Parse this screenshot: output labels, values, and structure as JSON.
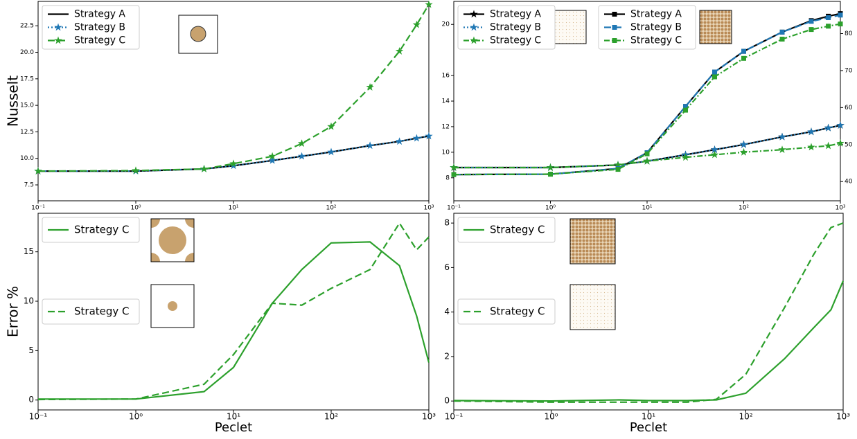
{
  "chart_data": [
    {
      "type": "line",
      "xscale": "log",
      "ylabel": "Nusselt",
      "x": [
        0.1,
        1,
        5,
        10,
        25,
        50,
        100,
        250,
        500,
        750,
        1000
      ],
      "xlim": [
        0.1,
        1000
      ],
      "xticks": [
        {
          "value": 0.1,
          "label": "10⁻¹"
        },
        {
          "value": 1,
          "label": "10⁰"
        },
        {
          "value": 10,
          "label": "10¹"
        },
        {
          "value": 100,
          "label": "10²"
        },
        {
          "value": 1000,
          "label": "10³"
        }
      ],
      "ylim": [
        6.0,
        24.8
      ],
      "yticks": [
        7.5,
        {
          "value": 10,
          "label": "10.0"
        },
        12.5,
        {
          "value": 15,
          "label": "15.0"
        },
        17.5,
        {
          "value": 20,
          "label": "20.0"
        },
        22.5
      ],
      "series": [
        {
          "name": "Strategy A",
          "color": "#000000",
          "style": "solid",
          "marker": null,
          "legend": "upper left",
          "values": [
            8.8,
            8.8,
            9.0,
            9.3,
            9.8,
            10.2,
            10.6,
            11.2,
            11.6,
            11.9,
            12.1
          ]
        },
        {
          "name": "Strategy B",
          "color": "#1f77b4",
          "style": "dotted",
          "marker": "star",
          "legend": "upper left",
          "values": [
            8.8,
            8.8,
            9.0,
            9.3,
            9.8,
            10.2,
            10.6,
            11.2,
            11.6,
            11.9,
            12.1
          ]
        },
        {
          "name": "Strategy C",
          "color": "#2ca02c",
          "style": "dashed",
          "marker": "star",
          "legend": "upper left",
          "values": [
            8.8,
            8.85,
            9.0,
            9.5,
            10.2,
            11.4,
            13.0,
            16.7,
            20.1,
            22.6,
            24.5
          ]
        }
      ]
    },
    {
      "type": "line",
      "xscale": "log",
      "x": [
        0.1,
        1,
        5,
        10,
        25,
        50,
        100,
        250,
        500,
        750,
        1000
      ],
      "xlim": [
        0.1,
        1000
      ],
      "xticks": [
        {
          "value": 0.1,
          "label": "10⁻¹"
        },
        {
          "value": 1,
          "label": "10⁰"
        },
        {
          "value": 10,
          "label": "10¹"
        },
        {
          "value": 100,
          "label": "10²"
        },
        {
          "value": 1000,
          "label": "10³"
        }
      ],
      "ylim": [
        6.2,
        21.8
      ],
      "yticks": [
        8,
        10,
        12,
        14,
        16,
        20
      ],
      "y2lim": [
        34.8,
        88.7
      ],
      "y2ticks": [
        40,
        50,
        60,
        70,
        80
      ],
      "series": [
        {
          "name": "Strategy A",
          "color": "#000000",
          "style": "solid",
          "marker": "star",
          "legend": "upper left",
          "values": [
            8.8,
            8.8,
            9.0,
            9.3,
            9.8,
            10.2,
            10.6,
            11.2,
            11.6,
            11.9,
            12.1
          ]
        },
        {
          "name": "Strategy B",
          "color": "#1f77b4",
          "style": "dotted",
          "marker": "star",
          "legend": "upper left",
          "values": [
            8.8,
            8.8,
            9.0,
            9.3,
            9.8,
            10.2,
            10.6,
            11.2,
            11.6,
            11.9,
            12.1
          ]
        },
        {
          "name": "Strategy C",
          "color": "#2ca02c",
          "style": "dashdot",
          "marker": "star",
          "legend": "upper left",
          "values": [
            8.8,
            8.8,
            9.0,
            9.3,
            9.6,
            9.8,
            10.0,
            10.2,
            10.4,
            10.5,
            10.7
          ]
        },
        {
          "name": "Strategy A",
          "color": "#000000",
          "style": "solid",
          "marker": "square",
          "legend": "upper center",
          "axis": "y2",
          "values": [
            41.9,
            42.0,
            43.5,
            47.8,
            60.3,
            69.6,
            75.2,
            80.4,
            83.5,
            84.7,
            85.4
          ]
        },
        {
          "name": "Strategy B",
          "color": "#1f77b4",
          "style": "dashed",
          "marker": "square",
          "legend": "upper center",
          "axis": "y2",
          "values": [
            41.9,
            42.0,
            43.5,
            47.8,
            60.3,
            69.6,
            75.2,
            80.4,
            83.3,
            84.3,
            85.0
          ]
        },
        {
          "name": "Strategy C",
          "color": "#2ca02c",
          "style": "dashdot",
          "marker": "square",
          "legend": "upper center",
          "axis": "y2",
          "values": [
            41.9,
            42.0,
            43.3,
            47.5,
            59.3,
            68.3,
            73.3,
            78.5,
            81.1,
            82.0,
            82.6
          ]
        }
      ]
    },
    {
      "type": "line",
      "xscale": "log",
      "ylabel": "Error %",
      "xlabel": "Peclet",
      "x": [
        0.1,
        1,
        5,
        10,
        25,
        50,
        100,
        250,
        500,
        750,
        1000
      ],
      "xlim": [
        0.1,
        1000
      ],
      "xticks": [
        {
          "value": 0.1,
          "label": "10⁻¹"
        },
        {
          "value": 1,
          "label": "10⁰"
        },
        {
          "value": 10,
          "label": "10¹"
        },
        {
          "value": 100,
          "label": "10²"
        },
        {
          "value": 1000,
          "label": "10³"
        }
      ],
      "ylim": [
        -1.0,
        18.9
      ],
      "yticks": [
        0,
        5,
        10,
        15
      ],
      "series": [
        {
          "name": "Strategy C",
          "color": "#2ca02c",
          "style": "solid",
          "marker": null,
          "legend": "upper left",
          "values": [
            0.1,
            0.1,
            0.85,
            3.3,
            9.8,
            13.2,
            15.9,
            16.0,
            13.6,
            8.5,
            3.8
          ]
        },
        {
          "name": "Strategy C",
          "color": "#2ca02c",
          "style": "dashed",
          "marker": null,
          "legend": "center left",
          "values": [
            0.05,
            0.1,
            1.6,
            4.6,
            9.8,
            9.6,
            11.3,
            13.2,
            17.9,
            15.2,
            16.5
          ]
        }
      ]
    },
    {
      "type": "line",
      "xscale": "log",
      "xlabel": "Peclet",
      "x": [
        0.1,
        1,
        5,
        10,
        25,
        50,
        100,
        250,
        500,
        750,
        1000
      ],
      "xlim": [
        0.1,
        1000
      ],
      "xticks": [
        {
          "value": 0.1,
          "label": "10⁻¹"
        },
        {
          "value": 1,
          "label": "10⁰"
        },
        {
          "value": 10,
          "label": "10¹"
        },
        {
          "value": 100,
          "label": "10²"
        },
        {
          "value": 1000,
          "label": "10³"
        }
      ],
      "ylim": [
        -0.4,
        8.44
      ],
      "yticks": [
        0,
        2,
        4,
        6,
        8
      ],
      "series": [
        {
          "name": "Strategy C",
          "color": "#2ca02c",
          "style": "solid",
          "marker": null,
          "legend": "upper left",
          "values": [
            0.02,
            0.0,
            0.05,
            0.02,
            0.02,
            0.05,
            0.35,
            1.9,
            3.3,
            4.1,
            5.4
          ]
        },
        {
          "name": "Strategy C",
          "color": "#2ca02c",
          "style": "dashed",
          "marker": null,
          "legend": "center left",
          "values": [
            0.0,
            -0.05,
            -0.05,
            -0.05,
            -0.05,
            0.08,
            1.2,
            4.2,
            6.6,
            7.8,
            8.0
          ]
        }
      ]
    }
  ]
}
